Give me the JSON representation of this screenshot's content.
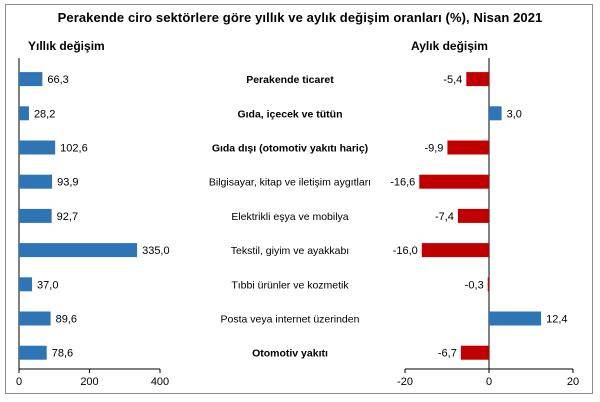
{
  "chart_data": {
    "type": "bar",
    "title": "Perakende ciro sektörlere göre yıllık ve aylık değişim oranları (%), Nisan 2021",
    "categories": [
      "Perakende ticaret",
      "Gıda, içecek ve tütün",
      "Gıda dışı (otomotiv yakıtı hariç)",
      "Bilgisayar, kitap ve iletişim aygıtları",
      "Elektrikli eşya ve mobilya",
      "Tekstil, giyim ve ayakkabı",
      "Tıbbi ürünler ve kozmetik",
      "Posta veya internet üzerinden",
      "Otomotiv yakıtı"
    ],
    "bold_categories": [
      true,
      true,
      true,
      false,
      false,
      false,
      false,
      false,
      true
    ],
    "panels": [
      {
        "title": "Yıllık değişim",
        "values": [
          66.3,
          28.2,
          102.6,
          93.9,
          92.7,
          335.0,
          37.0,
          89.6,
          78.6
        ],
        "value_labels": [
          "66,3",
          "28,2",
          "102,6",
          "93,9",
          "92,7",
          "335,0",
          "37,0",
          "89,6",
          "78,6"
        ],
        "xlim": [
          0,
          400
        ],
        "ticks": [
          0,
          200,
          400
        ],
        "tick_labels": [
          "0",
          "200",
          "400"
        ],
        "color": "#2e75b6"
      },
      {
        "title": "Aylık  değişim",
        "values": [
          -5.4,
          3.0,
          -9.9,
          -16.6,
          -7.4,
          -16.0,
          -0.3,
          12.4,
          -6.7
        ],
        "value_labels": [
          "-5,4",
          "3,0",
          "-9,9",
          "-16,6",
          "-7,4",
          "-16,0",
          "-0,3",
          "12,4",
          "-6,7"
        ],
        "xlim": [
          -20,
          20
        ],
        "ticks": [
          -20,
          0,
          20
        ],
        "tick_labels": [
          "-20",
          "0",
          "20"
        ],
        "positive_color": "#2e75b6",
        "negative_color": "#c00000"
      }
    ]
  }
}
